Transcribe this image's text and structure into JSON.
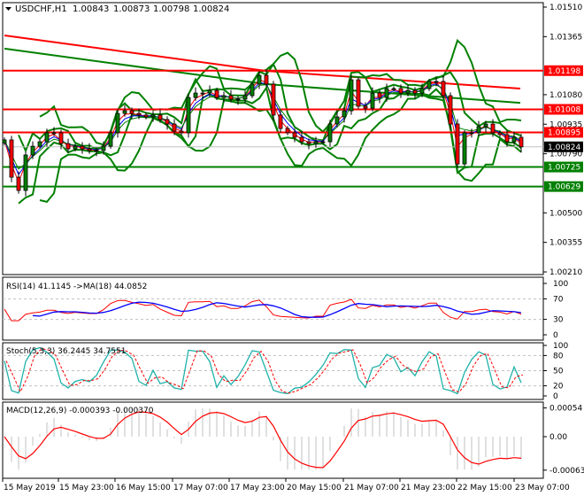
{
  "header": {
    "symbol": "USDCHF,H1",
    "open": "1.00843",
    "high": "1.00873",
    "low": "1.00798",
    "close": "1.00824",
    "menu_icon": "triangle-down-icon"
  },
  "colors": {
    "bull": "#008000",
    "bear": "#ff0000",
    "level_red": "#ff0000",
    "level_green": "#008000",
    "bands": "#008000",
    "ma_long_red": "#ff0000",
    "ma_long_green": "#008000",
    "ma_fast_red": "#ff0000",
    "ma_fast_blue": "#0000ff",
    "rsi": "#ff0000",
    "rsi_ma": "#0000ff",
    "stoch_main": "#20b2aa",
    "stoch_signal": "#ff0000",
    "macd_hist": "#c0c0c0",
    "macd_signal": "#ff0000",
    "current_price": "#000000"
  },
  "chart_data": {
    "type": "candlestick",
    "symbol": "USDCHF",
    "timeframe": "H1",
    "x_ticks": [
      "15 May 2019",
      "15 May 23:00",
      "16 May 15:00",
      "17 May 07:00",
      "17 May 23:00",
      "20 May 15:00",
      "21 May 07:00",
      "21 May 23:00",
      "22 May 15:00",
      "23 May 07:00"
    ],
    "price_ticks": [
      "1.01510",
      "1.01365",
      "1.01080",
      "1.00935",
      "1.00790",
      "1.00500",
      "1.00355",
      "1.00210"
    ],
    "ylim": [
      1.0021,
      1.0151
    ],
    "closes": [
      1.00858,
      1.00675,
      1.0061,
      1.00784,
      1.00827,
      1.00849,
      1.00893,
      1.00893,
      1.0084,
      1.00814,
      1.00827,
      1.00814,
      1.00806,
      1.00806,
      1.00827,
      1.00893,
      1.00988,
      1.01001,
      1.00988,
      1.0098,
      1.00971,
      1.0098,
      1.00958,
      1.00936,
      1.00901,
      1.00893,
      1.01066,
      1.01088,
      1.01088,
      1.01101,
      1.01066,
      1.01075,
      1.01058,
      1.01058,
      1.01075,
      1.01132,
      1.01175,
      1.01132,
      1.0098,
      1.00914,
      1.00893,
      1.00871,
      1.00849,
      1.0084,
      1.00849,
      1.00849,
      1.00936,
      1.00971,
      1.01001,
      1.01153,
      1.01023,
      1.01014,
      1.01088,
      1.01066,
      1.0111,
      1.0111,
      1.01088,
      1.01101,
      1.01088,
      1.0111,
      1.01145,
      1.01145,
      1.01075,
      1.00936,
      1.0074,
      1.00893,
      1.00893,
      1.00923,
      1.00936,
      1.00893,
      1.00884,
      1.00849,
      1.00871,
      1.00824
    ],
    "levels": [
      {
        "value": 1.01198,
        "label": "1.01198",
        "color": "red"
      },
      {
        "value": 1.01008,
        "label": "1.01008",
        "color": "red"
      },
      {
        "value": 1.00895,
        "label": "1.00895",
        "color": "red"
      },
      {
        "value": 1.00725,
        "label": "1.00725",
        "color": "green"
      },
      {
        "value": 1.00629,
        "label": "1.00629",
        "color": "green"
      }
    ],
    "current_price": {
      "value": 1.00824,
      "label": "1.00824"
    },
    "long_ma_red": {
      "start": 1.01371,
      "mid": 1.01197,
      "end": 1.0111
    },
    "long_ma_green": {
      "start": 1.01306,
      "mid": 1.01132,
      "end": 1.0104
    },
    "rsi": {
      "label": "RSI(14) 41.1145  ->MA(18) 44.0852",
      "ticks": [
        "100",
        "70",
        "30",
        "0"
      ],
      "levels": [
        70,
        30
      ],
      "ylim": [
        0,
        100
      ]
    },
    "stoch": {
      "label": "Stoch(5,3,3) 36.2445 34.7551",
      "ticks": [
        "100",
        "80",
        "50",
        "20",
        "0"
      ],
      "levels": [
        80,
        50,
        20
      ],
      "ylim": [
        0,
        100
      ]
    },
    "macd": {
      "label": "MACD(12,26,9) -0.000393 -0.000370",
      "ticks": [
        "0.00054",
        "0.00",
        "-0.00063"
      ],
      "ylim": [
        -0.00063,
        0.00054
      ]
    }
  }
}
